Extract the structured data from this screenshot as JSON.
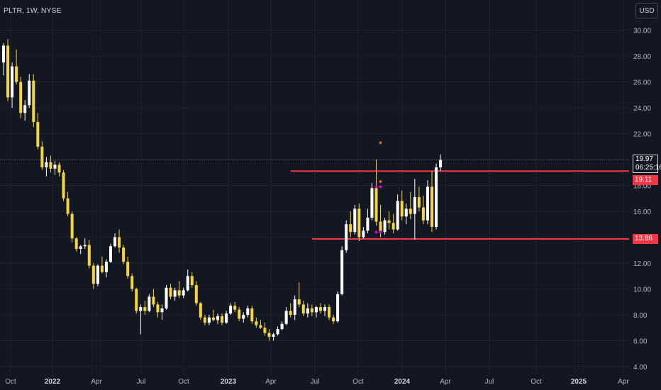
{
  "header": {
    "symbol_title": "PLTR, 1W, NYSE",
    "currency": "USD"
  },
  "price_tags": {
    "current_price": "19.97",
    "countdown": "06:25:16",
    "resistance": "19.11",
    "support": "13.86"
  },
  "colors": {
    "background": "#131722",
    "up_candle": "#ffffff",
    "down_candle": "#f5d53c",
    "level_line": "#f23645",
    "text": "#b2b5be",
    "marker_orange": "#d2691e",
    "marker_magenta": "#d500d5"
  },
  "chart_data": {
    "type": "candlestick",
    "timeframe": "1W",
    "ylim": [
      4,
      31
    ],
    "y_ticks": [
      4,
      6,
      8,
      10,
      12,
      14,
      16,
      18,
      20,
      22,
      24,
      26,
      28,
      30
    ],
    "y_tick_labels": [
      "4.00",
      "6.00",
      "8.00",
      "10.00",
      "12.00",
      "14.00",
      "16.00",
      "18.00",
      "20.00",
      "22.00",
      "24.00",
      "26.00",
      "28.00",
      "30.00"
    ],
    "x_tick_labels": [
      "Oct",
      "2022",
      "Apr",
      "Jul",
      "Oct",
      "2023",
      "Apr",
      "Jul",
      "Oct",
      "2024",
      "Apr",
      "Jul",
      "Oct",
      "2025",
      "Apr"
    ],
    "x_tick_bold": [
      false,
      true,
      false,
      false,
      false,
      true,
      false,
      false,
      false,
      true,
      false,
      false,
      false,
      true,
      false
    ],
    "horizontal_levels": [
      {
        "price": 19.11,
        "start_index": 67
      },
      {
        "price": 13.86,
        "start_index": 72
      }
    ],
    "current_price_line": 19.97,
    "markers": [
      {
        "index": 88,
        "price": 21.3,
        "color": "orange"
      },
      {
        "index": 88,
        "price": 18.3,
        "color": "orange"
      },
      {
        "index": 87,
        "price": 17.9,
        "color": "magenta"
      },
      {
        "index": 88,
        "price": 17.9,
        "color": "magenta"
      },
      {
        "index": 87,
        "price": 14.4,
        "color": "magenta"
      },
      {
        "index": 88,
        "price": 14.4,
        "color": "magenta"
      }
    ],
    "candles": [
      [
        27.5,
        29.0,
        26.5,
        28.8
      ],
      [
        28.8,
        29.3,
        24.5,
        24.8
      ],
      [
        24.8,
        27.5,
        24.0,
        27.2
      ],
      [
        27.2,
        28.5,
        25.8,
        26.0
      ],
      [
        26.0,
        26.4,
        23.2,
        23.6
      ],
      [
        23.6,
        24.6,
        23.0,
        24.2
      ],
      [
        24.2,
        26.6,
        24.0,
        26.1
      ],
      [
        26.1,
        26.6,
        22.5,
        22.9
      ],
      [
        22.9,
        23.6,
        20.8,
        21.0
      ],
      [
        21.0,
        21.4,
        19.2,
        19.4
      ],
      [
        19.4,
        20.2,
        18.7,
        19.8
      ],
      [
        19.8,
        20.3,
        19.0,
        19.3
      ],
      [
        19.3,
        19.9,
        18.8,
        19.6
      ],
      [
        19.6,
        19.8,
        18.7,
        19.0
      ],
      [
        19.0,
        19.2,
        16.8,
        17.0
      ],
      [
        17.0,
        17.5,
        15.6,
        15.8
      ],
      [
        15.8,
        16.0,
        13.6,
        13.9
      ],
      [
        13.9,
        14.0,
        12.9,
        13.1
      ],
      [
        13.1,
        13.4,
        12.7,
        13.3
      ],
      [
        13.3,
        13.9,
        13.1,
        13.4
      ],
      [
        13.4,
        13.8,
        11.6,
        11.8
      ],
      [
        11.8,
        12.0,
        10.0,
        10.4
      ],
      [
        10.4,
        11.9,
        10.2,
        11.8
      ],
      [
        11.8,
        12.5,
        11.2,
        11.3
      ],
      [
        11.3,
        12.3,
        10.9,
        12.1
      ],
      [
        12.1,
        13.5,
        12.0,
        13.3
      ],
      [
        13.3,
        14.3,
        13.2,
        14.0
      ],
      [
        14.0,
        14.6,
        12.8,
        13.2
      ],
      [
        13.2,
        13.4,
        11.9,
        12.1
      ],
      [
        12.1,
        12.5,
        10.8,
        11.0
      ],
      [
        11.0,
        11.2,
        9.8,
        10.0
      ],
      [
        10.0,
        10.1,
        8.1,
        8.3
      ],
      [
        8.3,
        8.8,
        6.5,
        8.6
      ],
      [
        8.6,
        9.1,
        8.0,
        8.3
      ],
      [
        8.3,
        9.6,
        8.2,
        9.4
      ],
      [
        9.4,
        10.0,
        8.6,
        8.8
      ],
      [
        8.8,
        9.0,
        7.8,
        8.2
      ],
      [
        8.2,
        8.8,
        7.6,
        8.5
      ],
      [
        8.5,
        10.3,
        8.4,
        10.1
      ],
      [
        10.1,
        10.4,
        9.2,
        9.4
      ],
      [
        9.4,
        10.1,
        9.1,
        9.9
      ],
      [
        9.9,
        10.6,
        9.3,
        9.5
      ],
      [
        9.5,
        10.1,
        9.3,
        9.9
      ],
      [
        9.9,
        11.5,
        9.8,
        11.0
      ],
      [
        11.0,
        11.3,
        10.1,
        10.3
      ],
      [
        10.3,
        10.6,
        8.7,
        8.9
      ],
      [
        8.9,
        9.0,
        7.6,
        7.8
      ],
      [
        7.8,
        8.0,
        7.2,
        7.4
      ],
      [
        7.4,
        8.0,
        7.2,
        7.8
      ],
      [
        7.8,
        8.4,
        7.5,
        7.6
      ],
      [
        7.6,
        8.1,
        7.3,
        7.9
      ],
      [
        7.9,
        8.1,
        7.2,
        7.4
      ],
      [
        7.4,
        8.3,
        7.3,
        8.1
      ],
      [
        8.1,
        8.9,
        8.0,
        8.7
      ],
      [
        8.7,
        9.0,
        8.2,
        8.4
      ],
      [
        8.4,
        8.6,
        7.5,
        7.7
      ],
      [
        7.7,
        8.2,
        7.4,
        8.0
      ],
      [
        8.0,
        8.7,
        7.8,
        8.5
      ],
      [
        8.5,
        8.7,
        7.3,
        7.5
      ],
      [
        7.5,
        7.8,
        7.0,
        7.2
      ],
      [
        7.2,
        7.6,
        6.9,
        7.0
      ],
      [
        7.0,
        7.4,
        6.4,
        6.6
      ],
      [
        6.6,
        6.9,
        6.0,
        6.3
      ],
      [
        6.3,
        6.6,
        6.0,
        6.5
      ],
      [
        6.5,
        7.1,
        6.4,
        6.9
      ],
      [
        6.9,
        7.5,
        6.8,
        7.3
      ],
      [
        7.3,
        8.6,
        7.2,
        8.3
      ],
      [
        8.3,
        8.9,
        7.8,
        8.0
      ],
      [
        8.0,
        9.5,
        7.6,
        9.2
      ],
      [
        9.2,
        10.5,
        8.6,
        8.8
      ],
      [
        8.8,
        9.1,
        7.9,
        8.1
      ],
      [
        8.1,
        8.9,
        7.8,
        8.5
      ],
      [
        8.5,
        8.8,
        7.9,
        8.2
      ],
      [
        8.2,
        8.7,
        7.8,
        8.6
      ],
      [
        8.6,
        8.9,
        8.1,
        8.3
      ],
      [
        8.3,
        8.8,
        7.9,
        8.6
      ],
      [
        8.6,
        8.8,
        7.6,
        7.8
      ],
      [
        7.8,
        8.0,
        7.3,
        7.5
      ],
      [
        7.5,
        9.8,
        7.4,
        9.6
      ],
      [
        9.6,
        13.3,
        9.5,
        13.0
      ],
      [
        13.0,
        15.3,
        12.8,
        15.0
      ],
      [
        15.0,
        16.0,
        14.0,
        14.4
      ],
      [
        14.4,
        16.5,
        14.2,
        16.2
      ],
      [
        16.2,
        16.6,
        13.7,
        14.0
      ],
      [
        14.0,
        14.8,
        13.9,
        14.5
      ],
      [
        14.5,
        16.2,
        14.3,
        15.5
      ],
      [
        15.5,
        18.2,
        15.3,
        17.8
      ],
      [
        17.8,
        20.0,
        14.9,
        15.2
      ],
      [
        15.2,
        16.5,
        14.0,
        14.4
      ],
      [
        14.4,
        15.5,
        14.2,
        15.3
      ],
      [
        15.3,
        16.0,
        14.6,
        15.1
      ],
      [
        15.1,
        15.8,
        14.3,
        14.6
      ],
      [
        14.6,
        17.3,
        14.5,
        16.8
      ],
      [
        16.8,
        17.6,
        15.3,
        15.6
      ],
      [
        15.6,
        16.6,
        15.0,
        16.2
      ],
      [
        16.2,
        17.5,
        15.4,
        15.8
      ],
      [
        15.8,
        18.5,
        13.8,
        17.1
      ],
      [
        17.1,
        17.9,
        16.0,
        16.3
      ],
      [
        16.3,
        17.2,
        15.0,
        15.3
      ],
      [
        15.3,
        18.4,
        15.0,
        17.9
      ],
      [
        17.9,
        19.1,
        14.4,
        14.8
      ],
      [
        14.8,
        19.7,
        14.6,
        19.4
      ],
      [
        19.4,
        20.4,
        19.1,
        19.97
      ]
    ]
  }
}
